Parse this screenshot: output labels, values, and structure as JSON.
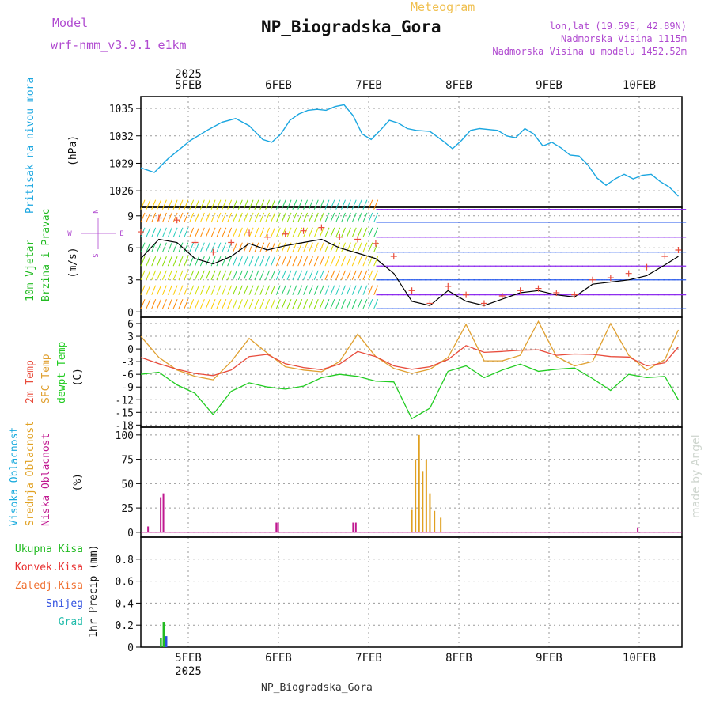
{
  "header": {
    "model_label": "Model",
    "model_name": "wrf-nmm_v3.9.1 e1km",
    "product": "Meteogram",
    "station": "NP_Biogradska_Gora",
    "coords": "lon,lat (19.59E, 42.89N)",
    "elevation": "Nadmorska Visina 1115m",
    "model_elevation": "Nadmorska Visina u modelu 1452.52m",
    "footer_station": "NP_Biogradska_Gora",
    "credit": "made by Angel"
  },
  "colors": {
    "pressure": "#1aa6e0",
    "t2m": "#e84c3c",
    "tsfc": "#e0a030",
    "dewpt": "#22cc22",
    "cloud_high": "#18aadd",
    "cloud_mid": "#e0a020",
    "cloud_low": "#c01890",
    "precip_total": "#22bb22",
    "precip_conv": "#e83030",
    "precip_snow": "#3050e0",
    "gust": "#e84c3c",
    "wind_mean": "#000000"
  },
  "chart_data": {
    "x_axis": {
      "year": "2025",
      "ticks": [
        "5FEB",
        "6FEB",
        "7FEB",
        "8FEB",
        "9FEB",
        "10FEB"
      ],
      "range": [
        "2025-02-04 14:00",
        "2025-02-10 12:00"
      ]
    },
    "panels": [
      {
        "id": "pressure",
        "type": "line",
        "ylabel": [
          "Pritisak na nivou mora",
          "(hPa)"
        ],
        "ylim": [
          1024.2,
          1036.3
        ],
        "yticks": [
          1026,
          1029,
          1032,
          1035
        ],
        "grid": true,
        "series": [
          {
            "name": "Pritisak na nivou mora",
            "x": [
              0,
              0.15,
              0.3,
              0.55,
              0.75,
              0.9,
              1.05,
              1.2,
              1.35,
              1.45,
              1.55,
              1.65,
              1.75,
              1.85,
              1.95,
              2.05,
              2.15,
              2.25,
              2.35,
              2.45,
              2.55,
              2.65,
              2.75,
              2.85,
              2.95,
              3.05,
              3.2,
              3.35,
              3.45,
              3.55,
              3.65,
              3.75,
              3.85,
              3.95,
              4.05,
              4.15,
              4.25,
              4.35,
              4.45,
              4.55,
              4.65,
              4.75,
              4.85,
              4.95,
              5.05,
              5.15,
              5.25,
              5.35,
              5.45,
              5.55,
              5.65,
              5.75,
              5.85,
              5.95
            ],
            "y": [
              1028.5,
              1028.0,
              1029.5,
              1031.5,
              1032.7,
              1033.5,
              1033.9,
              1033.1,
              1031.6,
              1031.3,
              1032.2,
              1033.7,
              1034.4,
              1034.8,
              1034.9,
              1034.8,
              1035.2,
              1035.4,
              1034.2,
              1032.2,
              1031.6,
              1032.6,
              1033.7,
              1033.4,
              1032.8,
              1032.6,
              1032.5,
              1031.4,
              1030.6,
              1031.5,
              1032.6,
              1032.8,
              1032.7,
              1032.6,
              1032.0,
              1031.8,
              1032.8,
              1032.2,
              1030.9,
              1031.3,
              1030.7,
              1029.9,
              1029.8,
              1028.8,
              1027.4,
              1026.6,
              1027.3,
              1027.8,
              1027.3,
              1027.7,
              1027.8,
              1027.0,
              1026.4,
              1025.4
            ]
          }
        ]
      },
      {
        "id": "wind",
        "type": "line",
        "ylabel": [
          "10m Vjetar",
          "Brzina i Pravac",
          "(m/s)"
        ],
        "compass": {
          "n": "N",
          "e": "E",
          "w": "W",
          "s": "S"
        },
        "ylim": [
          -0.5,
          9.8
        ],
        "yticks": [
          0,
          3,
          6,
          9
        ],
        "grid": true,
        "series": [
          {
            "name": "wind speed",
            "x": [
              0,
              0.2,
              0.4,
              0.6,
              0.8,
              1.0,
              1.2,
              1.4,
              1.6,
              1.8,
              2.0,
              2.2,
              2.4,
              2.6,
              2.8,
              3.0,
              3.2,
              3.4,
              3.6,
              3.8,
              4.0,
              4.2,
              4.4,
              4.6,
              4.8,
              5.0,
              5.2,
              5.4,
              5.6,
              5.8,
              5.95
            ],
            "y": [
              5.0,
              6.8,
              6.5,
              5.0,
              4.5,
              5.2,
              6.4,
              5.8,
              6.2,
              6.5,
              6.8,
              6.0,
              5.5,
              5.0,
              3.6,
              1.0,
              0.6,
              2.0,
              1.0,
              0.6,
              1.2,
              1.8,
              2.0,
              1.6,
              1.4,
              2.6,
              2.8,
              3.0,
              3.4,
              4.4,
              5.2
            ]
          },
          {
            "name": "gust",
            "x": [
              0,
              0.2,
              0.4,
              0.6,
              0.8,
              1.0,
              1.2,
              1.4,
              1.6,
              1.8,
              2.0,
              2.2,
              2.4,
              2.6,
              2.8,
              3.0,
              3.2,
              3.4,
              3.6,
              3.8,
              4.0,
              4.2,
              4.4,
              4.6,
              4.8,
              5.0,
              5.2,
              5.4,
              5.6,
              5.8,
              5.95
            ],
            "y": [
              7.5,
              8.8,
              8.6,
              6.5,
              5.6,
              6.5,
              7.4,
              7.0,
              7.3,
              7.6,
              7.9,
              7.0,
              6.8,
              6.4,
              5.2,
              2.0,
              0.8,
              2.4,
              1.6,
              0.8,
              1.5,
              2.0,
              2.2,
              1.8,
              1.6,
              3.0,
              3.2,
              3.6,
              4.2,
              5.2,
              5.8
            ]
          }
        ]
      },
      {
        "id": "temperature",
        "type": "line",
        "ylabel": [
          "2m Temp",
          "SFC Temp",
          "dewpt Temp",
          "(C)"
        ],
        "ylim": [
          -18.5,
          7.5
        ],
        "yticks": [
          6,
          3,
          0,
          -3,
          -6,
          -9,
          -12,
          -15,
          -18
        ],
        "grid": true,
        "series": [
          {
            "name": "2m Temp",
            "x": [
              0,
              0.2,
              0.4,
              0.6,
              0.8,
              1.0,
              1.2,
              1.4,
              1.6,
              1.8,
              2.0,
              2.2,
              2.4,
              2.6,
              2.8,
              3.0,
              3.2,
              3.4,
              3.6,
              3.8,
              4.0,
              4.2,
              4.4,
              4.6,
              4.8,
              5.0,
              5.2,
              5.4,
              5.6,
              5.8,
              5.95
            ],
            "y": [
              -2.0,
              -3.5,
              -4.8,
              -5.8,
              -6.3,
              -5.0,
              -1.8,
              -1.3,
              -3.5,
              -4.4,
              -4.9,
              -3.6,
              -0.6,
              -1.8,
              -4.0,
              -4.8,
              -4.2,
              -2.5,
              0.8,
              -0.8,
              -0.6,
              -0.3,
              -0.2,
              -1.5,
              -1.2,
              -1.3,
              -1.8,
              -1.9,
              -4.0,
              -3.3,
              0.5
            ]
          },
          {
            "name": "SFC Temp",
            "x": [
              0,
              0.2,
              0.4,
              0.6,
              0.8,
              1.0,
              1.2,
              1.4,
              1.6,
              1.8,
              2.0,
              2.2,
              2.4,
              2.6,
              2.8,
              3.0,
              3.2,
              3.4,
              3.6,
              3.8,
              4.0,
              4.2,
              4.4,
              4.6,
              4.8,
              5.0,
              5.2,
              5.4,
              5.6,
              5.8,
              5.95
            ],
            "y": [
              3.0,
              -2.0,
              -5.0,
              -6.5,
              -7.3,
              -3.0,
              2.5,
              -1.0,
              -4.2,
              -5.0,
              -5.4,
              -3.0,
              3.5,
              -1.8,
              -4.6,
              -5.8,
              -4.8,
              -2.0,
              5.8,
              -2.8,
              -2.8,
              -1.5,
              6.5,
              -1.8,
              -4.0,
              -3.0,
              6.0,
              -1.5,
              -5.0,
              -2.5,
              4.5
            ]
          },
          {
            "name": "dewpt Temp",
            "x": [
              0,
              0.2,
              0.4,
              0.6,
              0.8,
              1.0,
              1.2,
              1.4,
              1.6,
              1.8,
              2.0,
              2.2,
              2.4,
              2.6,
              2.8,
              3.0,
              3.2,
              3.4,
              3.6,
              3.8,
              4.0,
              4.2,
              4.4,
              4.6,
              4.8,
              5.0,
              5.2,
              5.4,
              5.6,
              5.8,
              5.95
            ],
            "y": [
              -6.0,
              -5.5,
              -8.5,
              -10.5,
              -15.5,
              -10.0,
              -8.0,
              -9.0,
              -9.5,
              -8.8,
              -6.8,
              -6.0,
              -6.5,
              -7.6,
              -7.8,
              -16.5,
              -14.0,
              -5.3,
              -4.0,
              -6.8,
              -5.0,
              -3.6,
              -5.3,
              -4.8,
              -4.5,
              -7.0,
              -9.8,
              -6.0,
              -6.8,
              -6.5,
              -12.0
            ]
          }
        ]
      },
      {
        "id": "clouds",
        "type": "bar",
        "ylabel": [
          "Visoka Oblacnost",
          "Srednja Oblacnost",
          "Niska Oblacnost",
          "(%)"
        ],
        "ylim": [
          -5,
          108
        ],
        "yticks": [
          0,
          25,
          50,
          75,
          100
        ],
        "grid": true,
        "series": [
          {
            "name": "Visoka Oblacnost",
            "x": [],
            "values": []
          },
          {
            "name": "Srednja Oblacnost",
            "x": [
              3.0,
              3.04,
              3.08,
              3.12,
              3.16,
              3.2,
              3.25,
              3.32
            ],
            "values": [
              23,
              75,
              100,
              63,
              74,
              40,
              22,
              15
            ]
          },
          {
            "name": "Niska Oblacnost",
            "x": [
              0.08,
              0.22,
              0.25,
              1.5,
              1.52,
              2.35,
              2.38,
              5.5
            ],
            "values": [
              6,
              36,
              40,
              10,
              10,
              10,
              10,
              5
            ]
          }
        ]
      },
      {
        "id": "precip",
        "type": "bar",
        "ylabel": [
          "1hr Precip (mm)"
        ],
        "legend": [
          "Ukupna Kisa",
          "Konvek.Kisa",
          "Zaledj.Kisa",
          "Snijeg",
          "Grad"
        ],
        "ylim": [
          0,
          1.0
        ],
        "yticks": [
          0,
          0.2,
          0.4,
          0.6,
          0.8
        ],
        "grid": true,
        "series": [
          {
            "name": "Ukupna Kisa",
            "x": [
              0.22,
              0.25
            ],
            "values": [
              0.08,
              0.23
            ]
          },
          {
            "name": "Konvek.Kisa",
            "x": [],
            "values": []
          },
          {
            "name": "Zaledj.Kisa",
            "x": [],
            "values": []
          },
          {
            "name": "Snijeg",
            "x": [
              0.28
            ],
            "values": [
              0.1
            ]
          },
          {
            "name": "Grad",
            "x": [],
            "values": []
          }
        ]
      }
    ]
  }
}
